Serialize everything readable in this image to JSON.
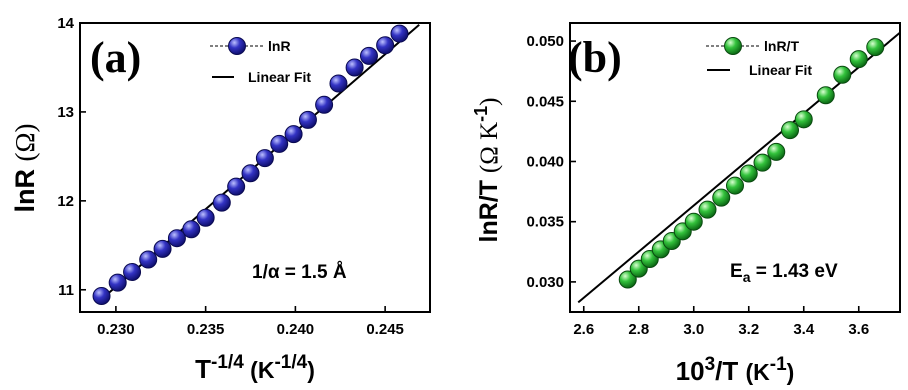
{
  "chart_data": [
    {
      "type": "scatter",
      "panel_label": "(a)",
      "xlabel": {
        "base": "T",
        "sup": "-1/4",
        "unit_base": " (K",
        "unit_sup": "-1/4",
        "unit_close": ")"
      },
      "ylabel": {
        "main": "lnR ",
        "unit": "(Ω)"
      },
      "xlim": [
        0.228,
        0.2475
      ],
      "ylim": [
        10.75,
        14
      ],
      "xticks": [
        0.23,
        0.235,
        0.24,
        0.245
      ],
      "xtick_labels": [
        "0.230",
        "0.235",
        "0.240",
        "0.245"
      ],
      "yticks": [
        11,
        12,
        13,
        14
      ],
      "ytick_labels": [
        "11",
        "12",
        "13",
        "14"
      ],
      "series": [
        {
          "name": "lnR",
          "color": "#1a1aa8",
          "x": [
            0.2292,
            0.2301,
            0.2309,
            0.2318,
            0.2326,
            0.2334,
            0.2342,
            0.235,
            0.2359,
            0.2367,
            0.2375,
            0.2383,
            0.2391,
            0.2399,
            0.2407,
            0.2416,
            0.2424,
            0.2433,
            0.2441,
            0.245,
            0.2458
          ],
          "y": [
            10.93,
            11.08,
            11.2,
            11.34,
            11.46,
            11.58,
            11.68,
            11.81,
            11.98,
            12.16,
            12.31,
            12.48,
            12.64,
            12.75,
            12.91,
            13.08,
            13.32,
            13.5,
            13.63,
            13.75,
            13.88
          ]
        }
      ],
      "fit": {
        "name": "Linear Fit",
        "color": "#000000",
        "x": [
          0.229,
          0.2469
        ],
        "y": [
          10.86,
          13.98
        ]
      },
      "annotation": "1/α = 1.5 Å",
      "legend": {
        "placement": "top-right"
      }
    },
    {
      "type": "scatter",
      "panel_label": "(b)",
      "xlabel": {
        "base": "10",
        "sup": "3",
        "mid": "/T ",
        "unit_base": "(K",
        "unit_sup": "-1",
        "unit_close": ")"
      },
      "ylabel": {
        "main": "lnR/T ",
        "unit_base": "(Ω K",
        "unit_sup": "-1",
        "unit_close": ")"
      },
      "xlim": [
        2.55,
        3.75
      ],
      "ylim": [
        0.0275,
        0.0515
      ],
      "xticks": [
        2.6,
        2.8,
        3.0,
        3.2,
        3.4,
        3.6
      ],
      "xtick_labels": [
        "2.6",
        "2.8",
        "3.0",
        "3.2",
        "3.4",
        "3.6"
      ],
      "yticks": [
        0.03,
        0.035,
        0.04,
        0.045,
        0.05
      ],
      "ytick_labels": [
        "0.030",
        "0.035",
        "0.040",
        "0.045",
        "0.050"
      ],
      "series": [
        {
          "name": "lnR/T",
          "color": "#22a833",
          "x": [
            2.76,
            2.8,
            2.84,
            2.88,
            2.92,
            2.96,
            3.0,
            3.05,
            3.1,
            3.15,
            3.2,
            3.25,
            3.3,
            3.35,
            3.4,
            3.48,
            3.54,
            3.6,
            3.66
          ],
          "y": [
            0.0302,
            0.0311,
            0.0319,
            0.0327,
            0.0334,
            0.0342,
            0.035,
            0.036,
            0.037,
            0.038,
            0.039,
            0.0399,
            0.0408,
            0.0426,
            0.0435,
            0.0455,
            0.0472,
            0.0485,
            0.0495
          ]
        }
      ],
      "fit": {
        "name": "Linear Fit",
        "color": "#000000",
        "x": [
          2.58,
          3.75
        ],
        "y": [
          0.0283,
          0.0507
        ]
      },
      "annotation": {
        "base": "E",
        "sub": "a",
        "rest": " = 1.43 eV"
      },
      "legend": {
        "placement": "top-right"
      }
    }
  ]
}
